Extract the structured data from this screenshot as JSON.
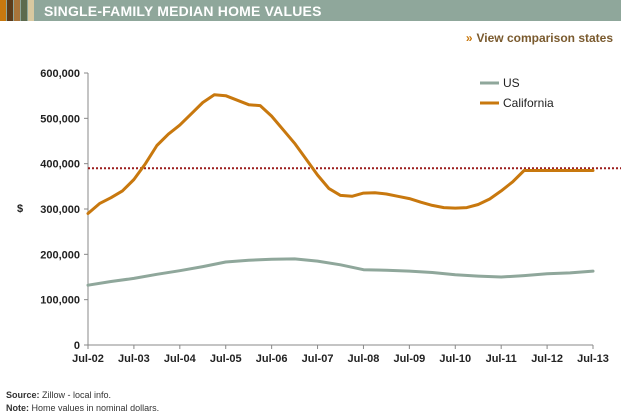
{
  "header": {
    "title": "SINGLE-FAMILY MEDIAN HOME VALUES",
    "swatch_colors": [
      "#c8780e",
      "#5b3b1a",
      "#a8743a",
      "#5d6b4e",
      "#d9c9a0"
    ]
  },
  "compare_link": {
    "chevrons": "»",
    "label": "View comparison states"
  },
  "footer": {
    "source_label": "Source:",
    "source_text": "Zillow - local info.",
    "note_label": "Note:",
    "note_text": "Home values in nominal dollars."
  },
  "chart_data": {
    "type": "line",
    "ylabel": "$",
    "ylim": [
      0,
      600000
    ],
    "yticks": [
      "0",
      "100,000",
      "200,000",
      "300,000",
      "400,000",
      "500,000",
      "600,000"
    ],
    "xticks": [
      "Jul-02",
      "Jul-03",
      "Jul-04",
      "Jul-05",
      "Jul-06",
      "Jul-07",
      "Jul-08",
      "Jul-09",
      "Jul-10",
      "Jul-11",
      "Jul-12",
      "Jul-13"
    ],
    "xlim": [
      2002.5,
      2013.5
    ],
    "legend_position": "top-right",
    "reference_line": {
      "value": 390000,
      "style": "dotted",
      "color": "#9b1c1c"
    },
    "series": [
      {
        "name": "US",
        "color": "#8fa79b",
        "x": [
          2002.5,
          2003.0,
          2003.5,
          2004.0,
          2004.5,
          2005.0,
          2005.5,
          2006.0,
          2006.5,
          2007.0,
          2007.5,
          2008.0,
          2008.5,
          2009.0,
          2009.5,
          2010.0,
          2010.5,
          2011.0,
          2011.5,
          2012.0,
          2012.5,
          2013.0,
          2013.5
        ],
        "values": [
          132000,
          140000,
          147000,
          156000,
          164000,
          173000,
          183000,
          187000,
          189000,
          190000,
          185000,
          177000,
          166000,
          165000,
          163000,
          160000,
          155000,
          152000,
          150000,
          153000,
          157000,
          159000,
          163000
        ]
      },
      {
        "name": "California",
        "color": "#c8780e",
        "x": [
          2002.5,
          2002.75,
          2003.0,
          2003.25,
          2003.5,
          2003.75,
          2004.0,
          2004.25,
          2004.5,
          2004.75,
          2005.0,
          2005.25,
          2005.5,
          2005.75,
          2006.0,
          2006.25,
          2006.5,
          2006.75,
          2007.0,
          2007.25,
          2007.5,
          2007.75,
          2008.0,
          2008.25,
          2008.5,
          2008.75,
          2009.0,
          2009.25,
          2009.5,
          2009.75,
          2010.0,
          2010.25,
          2010.5,
          2010.75,
          2011.0,
          2011.25,
          2011.5,
          2011.75,
          2012.0,
          2012.25,
          2012.5,
          2012.75,
          2013.0,
          2013.25,
          2013.5
        ],
        "values": [
          290000,
          312000,
          325000,
          340000,
          365000,
          400000,
          440000,
          465000,
          485000,
          510000,
          535000,
          552000,
          550000,
          540000,
          530000,
          528000,
          505000,
          475000,
          445000,
          410000,
          375000,
          345000,
          330000,
          328000,
          335000,
          336000,
          333000,
          328000,
          323000,
          315000,
          308000,
          303000,
          302000,
          303000,
          310000,
          322000,
          340000,
          360000,
          385000,
          385000,
          385000,
          385000,
          385000,
          385000,
          385000
        ]
      }
    ]
  }
}
